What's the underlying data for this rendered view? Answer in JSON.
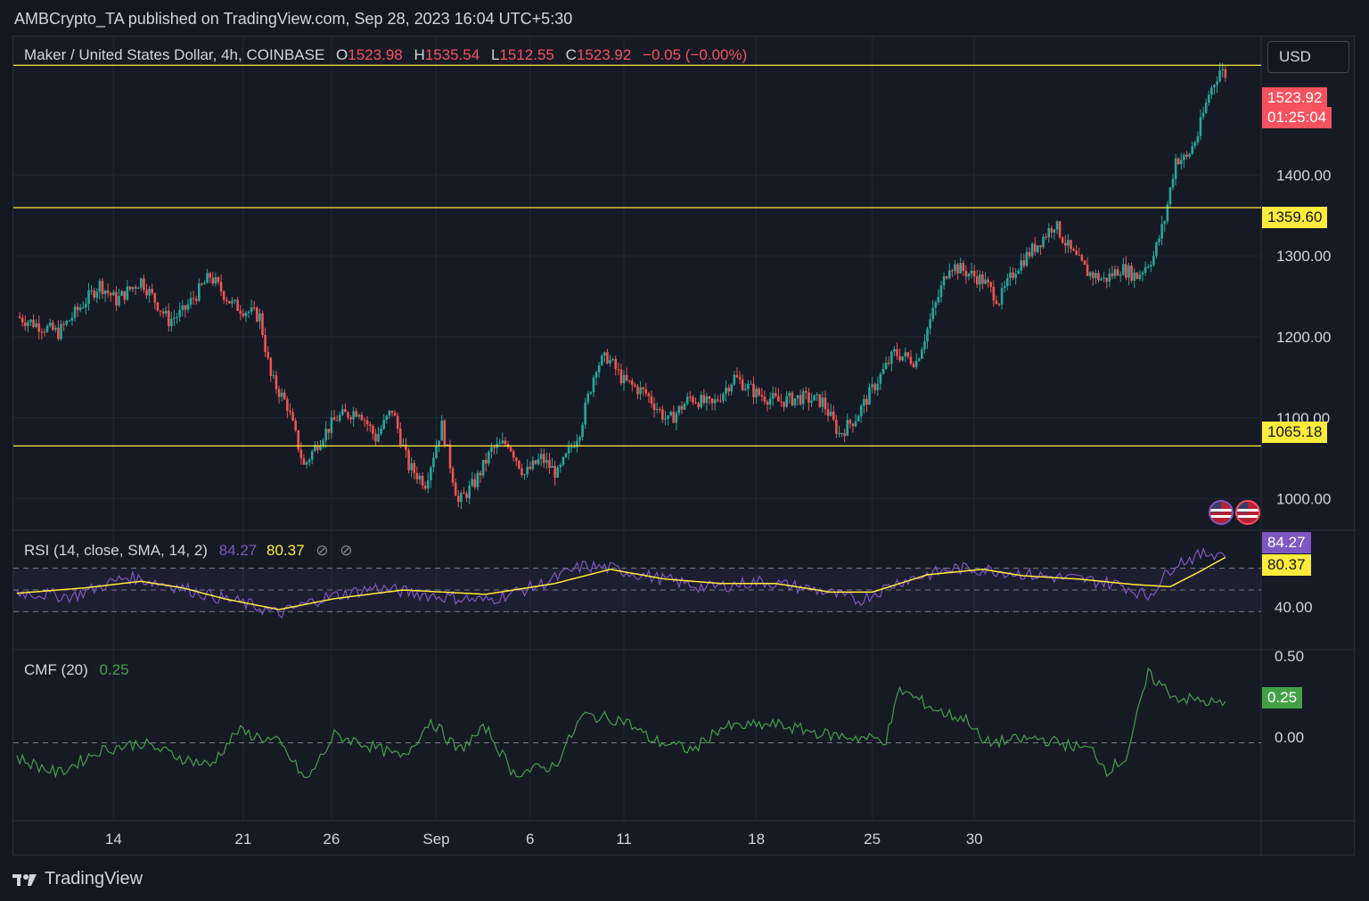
{
  "header": {
    "publish_line": "AMBCrypto_TA published on TradingView.com, Sep 28, 2023 16:04 UTC+5:30"
  },
  "symbol": {
    "title": "Maker / United States Dollar, 4h, COINBASE",
    "o_label": "O",
    "o_value": "1523.98",
    "h_label": "H",
    "h_value": "1535.54",
    "l_label": "L",
    "l_value": "1512.55",
    "c_label": "C",
    "c_value": "1523.92",
    "change": "−0.05 (−0.00%)"
  },
  "currency_button": "USD",
  "price_tags": {
    "last_price": "1523.92",
    "countdown": "01:25:04",
    "level_1359": "1359.60",
    "level_1065": "1065.18"
  },
  "rsi": {
    "label": "RSI (14, close, SMA, 14, 2)",
    "value": "84.27",
    "sma_value": "80.37",
    "tag_rsi": "84.27",
    "tag_sma": "80.37",
    "axis_40": "40.00"
  },
  "cmf": {
    "label": "CMF (20)",
    "value": "0.25",
    "tag": "0.25",
    "axis_050": "0.50",
    "axis_000": "0.00"
  },
  "footer": {
    "brand": "TradingView"
  },
  "colors": {
    "up": "#26a69a",
    "down": "#ef5350",
    "level": "#ffeb3b",
    "rsi": "#7e57c2",
    "cmf": "#43a047"
  },
  "chart_data": [
    {
      "type": "candlestick",
      "title": "Maker / United States Dollar, 4h, COINBASE",
      "price_axis_ticks": [
        1000,
        1100,
        1200,
        1300,
        1400
      ],
      "x_ticks": [
        "14",
        "21",
        "26",
        "Sep",
        "6",
        "11",
        "18",
        "25",
        "30"
      ],
      "horizontal_levels": [
        1359.6,
        1065.18,
        1535.54
      ],
      "ylim": [
        950,
        1560
      ],
      "path_points": [
        [
          0,
          1225
        ],
        [
          15,
          1205
        ],
        [
          30,
          1265
        ],
        [
          36,
          1245
        ],
        [
          45,
          1270
        ],
        [
          55,
          1220
        ],
        [
          60,
          1230
        ],
        [
          70,
          1275
        ],
        [
          78,
          1240
        ],
        [
          88,
          1225
        ],
        [
          92,
          1150
        ],
        [
          98,
          1115
        ],
        [
          104,
          1040
        ],
        [
          110,
          1075
        ],
        [
          116,
          1100
        ],
        [
          124,
          1110
        ],
        [
          130,
          1075
        ],
        [
          136,
          1110
        ],
        [
          142,
          1040
        ],
        [
          148,
          1020
        ],
        [
          154,
          1090
        ],
        [
          160,
          995
        ],
        [
          166,
          1020
        ],
        [
          172,
          1060
        ],
        [
          178,
          1070
        ],
        [
          184,
          1030
        ],
        [
          190,
          1050
        ],
        [
          196,
          1030
        ],
        [
          204,
          1085
        ],
        [
          210,
          1165
        ],
        [
          214,
          1175
        ],
        [
          220,
          1145
        ],
        [
          228,
          1130
        ],
        [
          236,
          1095
        ],
        [
          244,
          1125
        ],
        [
          252,
          1115
        ],
        [
          260,
          1150
        ],
        [
          268,
          1130
        ],
        [
          276,
          1120
        ],
        [
          284,
          1125
        ],
        [
          292,
          1120
        ],
        [
          298,
          1080
        ],
        [
          304,
          1100
        ],
        [
          310,
          1135
        ],
        [
          318,
          1180
        ],
        [
          326,
          1170
        ],
        [
          332,
          1230
        ],
        [
          338,
          1290
        ],
        [
          344,
          1280
        ],
        [
          350,
          1270
        ],
        [
          356,
          1245
        ],
        [
          362,
          1285
        ],
        [
          370,
          1315
        ],
        [
          376,
          1340
        ],
        [
          382,
          1305
        ],
        [
          388,
          1280
        ],
        [
          394,
          1270
        ],
        [
          400,
          1285
        ],
        [
          406,
          1275
        ],
        [
          412,
          1300
        ],
        [
          416,
          1345
        ],
        [
          420,
          1420
        ],
        [
          424,
          1420
        ],
        [
          428,
          1450
        ],
        [
          432,
          1500
        ],
        [
          436,
          1530
        ],
        [
          438,
          1524
        ]
      ]
    },
    {
      "type": "line",
      "title": "RSI (14, close, SMA, 14, 2)",
      "series": [
        {
          "name": "RSI",
          "points": [
            [
              0,
              48
            ],
            [
              20,
              44
            ],
            [
              40,
              62
            ],
            [
              55,
              55
            ],
            [
              70,
              45
            ],
            [
              85,
              36
            ],
            [
              95,
              28
            ],
            [
              110,
              42
            ],
            [
              130,
              52
            ],
            [
              150,
              45
            ],
            [
              170,
              40
            ],
            [
              190,
              55
            ],
            [
              205,
              72
            ],
            [
              215,
              70
            ],
            [
              230,
              62
            ],
            [
              250,
              52
            ],
            [
              270,
              58
            ],
            [
              290,
              50
            ],
            [
              305,
              40
            ],
            [
              320,
              58
            ],
            [
              340,
              70
            ],
            [
              355,
              68
            ],
            [
              370,
              63
            ],
            [
              385,
              60
            ],
            [
              400,
              55
            ],
            [
              410,
              44
            ],
            [
              420,
              75
            ],
            [
              432,
              84
            ],
            [
              438,
              84
            ]
          ]
        },
        {
          "name": "SMA",
          "points": [
            [
              0,
              47
            ],
            [
              25,
              52
            ],
            [
              45,
              58
            ],
            [
              60,
              52
            ],
            [
              75,
              42
            ],
            [
              95,
              32
            ],
            [
              115,
              42
            ],
            [
              140,
              50
            ],
            [
              170,
              46
            ],
            [
              195,
              56
            ],
            [
              215,
              69
            ],
            [
              235,
              60
            ],
            [
              255,
              56
            ],
            [
              275,
              56
            ],
            [
              295,
              48
            ],
            [
              310,
              48
            ],
            [
              330,
              64
            ],
            [
              350,
              69
            ],
            [
              365,
              63
            ],
            [
              385,
              60
            ],
            [
              405,
              55
            ],
            [
              418,
              53
            ],
            [
              428,
              66
            ],
            [
              438,
              80
            ]
          ]
        }
      ],
      "levels": [
        70,
        50,
        30
      ]
    },
    {
      "type": "line",
      "title": "CMF (20)",
      "series": [
        {
          "name": "CMF",
          "points": [
            [
              0,
              -0.1
            ],
            [
              15,
              -0.2
            ],
            [
              30,
              -0.05
            ],
            [
              45,
              0.0
            ],
            [
              60,
              -0.1
            ],
            [
              70,
              -0.15
            ],
            [
              80,
              0.08
            ],
            [
              95,
              0.0
            ],
            [
              105,
              -0.25
            ],
            [
              115,
              0.05
            ],
            [
              125,
              0.0
            ],
            [
              140,
              -0.1
            ],
            [
              150,
              0.15
            ],
            [
              160,
              -0.05
            ],
            [
              170,
              0.1
            ],
            [
              180,
              -0.2
            ],
            [
              195,
              -0.15
            ],
            [
              205,
              0.18
            ],
            [
              220,
              0.15
            ],
            [
              230,
              0.02
            ],
            [
              245,
              -0.05
            ],
            [
              255,
              0.1
            ],
            [
              275,
              0.12
            ],
            [
              295,
              0.05
            ],
            [
              315,
              0.02
            ],
            [
              320,
              0.35
            ],
            [
              335,
              0.2
            ],
            [
              345,
              0.15
            ],
            [
              350,
              0.0
            ],
            [
              370,
              0.03
            ],
            [
              390,
              -0.05
            ],
            [
              395,
              -0.18
            ],
            [
              402,
              -0.1
            ],
            [
              410,
              0.45
            ],
            [
              420,
              0.3
            ],
            [
              438,
              0.25
            ]
          ]
        }
      ],
      "ylim": [
        -0.5,
        0.6
      ],
      "levels": [
        0
      ]
    }
  ]
}
